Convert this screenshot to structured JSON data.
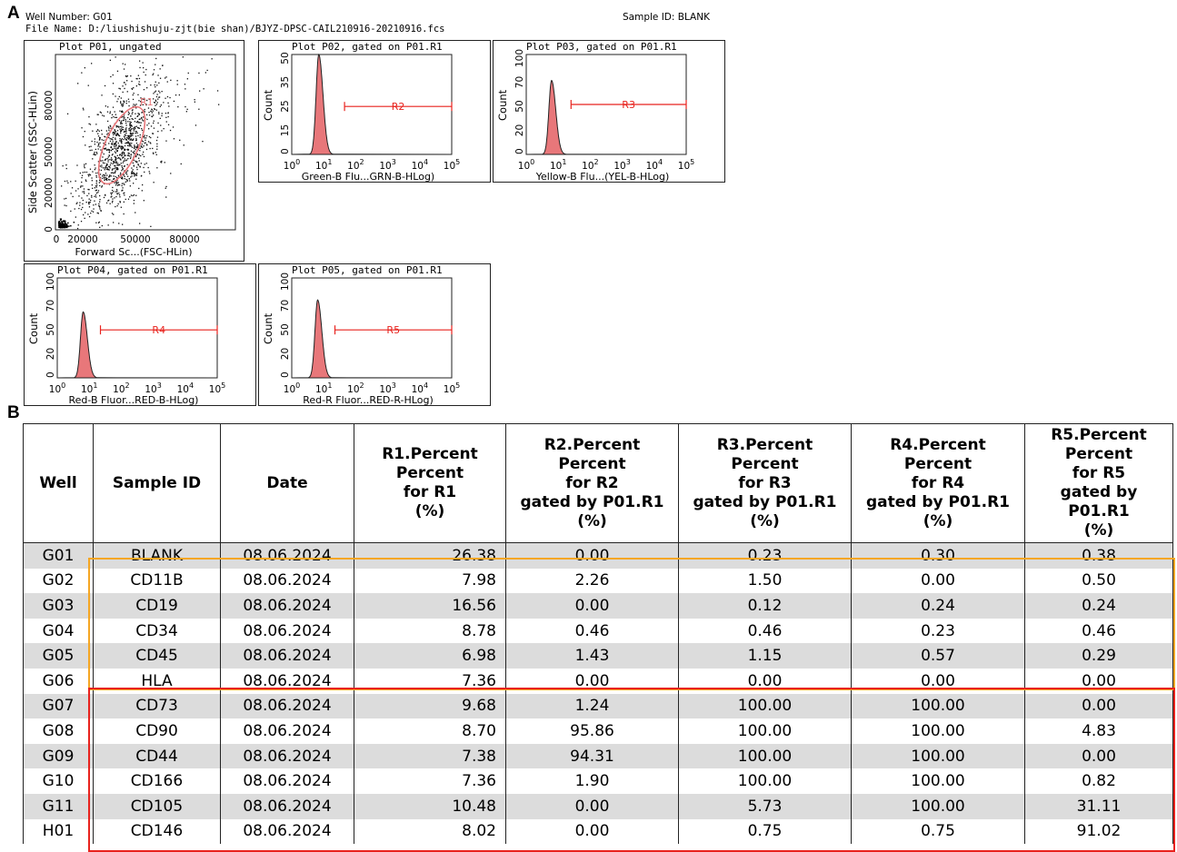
{
  "panel_a_label": "A",
  "panel_b_label": "B",
  "header": {
    "well_number": "Well Number: G01",
    "file_name": "File Name: D:/liushishuju-zjt(bie shan)/BJYZ-DPSC-CAIL210916-20210916.fcs",
    "sample_id": "Sample ID: BLANK"
  },
  "plots": {
    "p01": {
      "title": "Plot P01, ungated",
      "ylabel": "Side Scatter (SSC-HLin)",
      "xlabel": "Forward Sc...(FSC-HLin)",
      "yticks": [
        "0",
        "20000",
        "50000",
        "80000"
      ],
      "xticks": [
        "0",
        "20000",
        "50000",
        "80000"
      ],
      "gate": "R1"
    },
    "p02": {
      "title": "Plot P02, gated on P01.R1",
      "ylabel": "Count",
      "xlabel": "Green-B Flu...GRN-B-HLog)",
      "yticks": [
        "0",
        "15",
        "25",
        "35",
        "50"
      ],
      "gate": "R2"
    },
    "p03": {
      "title": "Plot P03, gated on P01.R1",
      "ylabel": "Count",
      "xlabel": "Yellow-B Flu...(YEL-B-HLog)",
      "yticks": [
        "0",
        "20",
        "50",
        "70",
        "100"
      ],
      "gate": "R3"
    },
    "p04": {
      "title": "Plot P04, gated on P01.R1",
      "ylabel": "Count",
      "xlabel": "Red-B Fluor...RED-B-HLog)",
      "yticks": [
        "0",
        "20",
        "50",
        "70",
        "100"
      ],
      "gate": "R4"
    },
    "p05": {
      "title": "Plot P05, gated on P01.R1",
      "ylabel": "Count",
      "xlabel": "Red-R Fluor...RED-R-HLog)",
      "yticks": [
        "0",
        "20",
        "50",
        "70",
        "100"
      ],
      "gate": "R5"
    },
    "log_xticks": [
      {
        "base": "10",
        "exp": "0"
      },
      {
        "base": "10",
        "exp": "1"
      },
      {
        "base": "10",
        "exp": "2"
      },
      {
        "base": "10",
        "exp": "3"
      },
      {
        "base": "10",
        "exp": "4"
      },
      {
        "base": "10",
        "exp": "5"
      }
    ]
  },
  "colors": {
    "histogram_fill": "#e8777a",
    "gate_line": "#e8221d",
    "shade_row": "#dcdcdc",
    "orange_box": "#f5a623",
    "red_box": "#e8221d"
  },
  "table": {
    "headers": [
      [
        "Well"
      ],
      [
        "Sample ID"
      ],
      [
        "Date"
      ],
      [
        "R1.Percent",
        "Percent",
        "for R1",
        "(%)"
      ],
      [
        "R2.Percent",
        "Percent",
        "for R2",
        "gated by P01.R1",
        "(%)"
      ],
      [
        "R3.Percent",
        "Percent",
        "for R3",
        "gated by P01.R1",
        "(%)"
      ],
      [
        "R4.Percent",
        "Percent",
        "for R4",
        "gated by P01.R1",
        "(%)"
      ],
      [
        "R5.Percent",
        "Percent",
        "for R5",
        "gated by P01.R1",
        "(%)"
      ]
    ],
    "rows": [
      [
        "G01",
        "BLANK",
        "08.06.2024",
        "26.38",
        "0.00",
        "0.23",
        "0.30",
        "0.38"
      ],
      [
        "G02",
        "CD11B",
        "08.06.2024",
        "7.98",
        "2.26",
        "1.50",
        "0.00",
        "0.50"
      ],
      [
        "G03",
        "CD19",
        "08.06.2024",
        "16.56",
        "0.00",
        "0.12",
        "0.24",
        "0.24"
      ],
      [
        "G04",
        "CD34",
        "08.06.2024",
        "8.78",
        "0.46",
        "0.46",
        "0.23",
        "0.46"
      ],
      [
        "G05",
        "CD45",
        "08.06.2024",
        "6.98",
        "1.43",
        "1.15",
        "0.57",
        "0.29"
      ],
      [
        "G06",
        "HLA",
        "08.06.2024",
        "7.36",
        "0.00",
        "0.00",
        "0.00",
        "0.00"
      ],
      [
        "G07",
        "CD73",
        "08.06.2024",
        "9.68",
        "1.24",
        "100.00",
        "100.00",
        "0.00"
      ],
      [
        "G08",
        "CD90",
        "08.06.2024",
        "8.70",
        "95.86",
        "100.00",
        "100.00",
        "4.83"
      ],
      [
        "G09",
        "CD44",
        "08.06.2024",
        "7.38",
        "94.31",
        "100.00",
        "100.00",
        "0.00"
      ],
      [
        "G10",
        "CD166",
        "08.06.2024",
        "7.36",
        "1.90",
        "100.00",
        "100.00",
        "0.82"
      ],
      [
        "G11",
        "CD105",
        "08.06.2024",
        "10.48",
        "0.00",
        "5.73",
        "100.00",
        "31.11"
      ],
      [
        "H01",
        "CD146",
        "08.06.2024",
        "8.02",
        "0.00",
        "0.75",
        "0.75",
        "91.02"
      ]
    ]
  }
}
